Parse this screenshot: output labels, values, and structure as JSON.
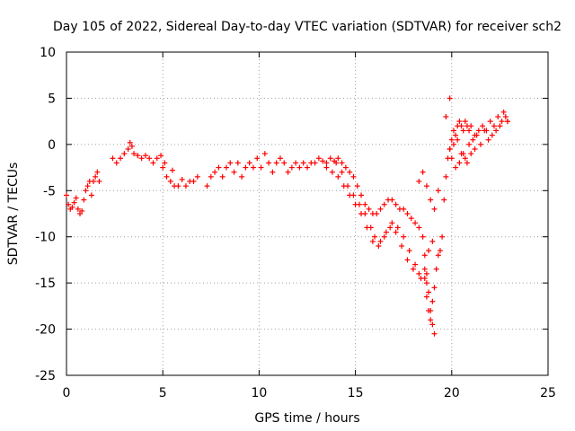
{
  "chart_data": {
    "type": "scatter",
    "title": "Day 105 of 2022, Sidereal Day-to-day VTEC variation (SDTVAR) for receiver sch2",
    "xlabel": "GPS time / hours",
    "ylabel": "SDTVAR / TECUs",
    "xlim": [
      0,
      25
    ],
    "ylim": [
      -25,
      10
    ],
    "xticks": [
      0,
      5,
      10,
      15,
      20,
      25
    ],
    "yticks": [
      -25,
      -20,
      -15,
      -10,
      -5,
      0,
      5,
      10
    ],
    "grid": true,
    "marker": "+",
    "series": [
      {
        "name": "SDTVAR",
        "color": "#ff0000",
        "x": [
          0.0,
          0.1,
          0.2,
          0.3,
          0.4,
          0.5,
          0.6,
          0.7,
          0.8,
          0.9,
          1.0,
          1.1,
          1.2,
          1.3,
          1.4,
          1.5,
          1.6,
          1.7,
          2.4,
          2.6,
          2.8,
          3.0,
          3.2,
          3.3,
          3.4,
          3.5,
          3.7,
          3.9,
          4.1,
          4.3,
          4.5,
          4.7,
          4.9,
          5.0,
          5.1,
          5.2,
          5.4,
          5.5,
          5.6,
          5.8,
          6.0,
          6.2,
          6.4,
          6.6,
          6.8,
          7.3,
          7.5,
          7.7,
          7.9,
          8.1,
          8.3,
          8.5,
          8.7,
          8.9,
          9.1,
          9.3,
          9.5,
          9.7,
          9.9,
          10.1,
          10.3,
          10.5,
          10.7,
          10.9,
          11.1,
          11.3,
          11.5,
          11.7,
          11.9,
          12.1,
          12.3,
          12.5,
          12.7,
          12.9,
          13.1,
          13.3,
          13.5,
          13.7,
          13.9,
          14.1,
          14.3,
          14.5,
          14.7,
          14.9,
          15.1,
          15.3,
          15.5,
          15.7,
          15.9,
          16.1,
          16.3,
          16.5,
          16.7,
          16.9,
          17.1,
          17.3,
          17.5,
          17.7,
          17.9,
          18.1,
          18.3,
          18.5,
          18.6,
          18.7,
          18.8,
          18.9,
          19.0,
          19.1,
          13.5,
          13.8,
          14.1,
          14.4,
          14.7,
          15.0,
          15.3,
          15.6,
          15.9,
          16.2,
          16.5,
          16.8,
          17.1,
          17.4,
          17.7,
          18.0,
          18.3,
          18.6,
          18.8,
          19.0,
          14.0,
          14.3,
          14.6,
          14.9,
          15.2,
          15.5,
          15.8,
          16.0,
          16.3,
          16.6,
          16.9,
          17.2,
          17.5,
          17.8,
          18.1,
          18.4,
          18.7,
          18.6,
          18.7,
          18.8,
          18.9,
          19.0,
          19.1,
          19.2,
          19.3,
          19.4,
          19.5,
          19.6,
          19.7,
          19.8,
          19.9,
          20.0,
          20.1,
          20.2,
          20.3,
          20.4,
          20.5,
          20.6,
          20.7,
          20.8,
          20.9,
          21.0,
          21.2,
          21.4,
          21.6,
          21.8,
          22.0,
          22.2,
          22.4,
          22.6,
          22.8,
          22.9,
          19.7,
          19.9,
          20.1,
          20.3,
          20.5,
          20.7,
          20.9,
          21.1,
          21.3,
          21.5,
          21.7,
          21.9,
          22.1,
          22.3,
          22.5,
          22.7,
          22.9,
          19.9,
          20.0,
          20.2,
          20.4,
          20.6,
          20.8,
          21.0,
          21.2,
          18.3,
          18.5,
          18.7,
          18.9,
          19.1,
          19.3
        ],
        "y": [
          -5.5,
          -6.5,
          -7.0,
          -6.8,
          -6.3,
          -5.8,
          -7.0,
          -7.5,
          -7.2,
          -6.0,
          -5.0,
          -4.5,
          -4.0,
          -5.5,
          -4.0,
          -3.5,
          -3.0,
          -4.0,
          -1.5,
          -2.0,
          -1.5,
          -1.0,
          -0.5,
          0.2,
          -0.2,
          -1.0,
          -1.2,
          -1.5,
          -1.2,
          -1.5,
          -2.0,
          -1.5,
          -1.2,
          -2.5,
          -2.0,
          -3.5,
          -4.0,
          -2.8,
          -4.5,
          -4.5,
          -3.8,
          -4.5,
          -4.0,
          -4.0,
          -3.5,
          -4.5,
          -3.5,
          -3.0,
          -2.5,
          -3.5,
          -2.5,
          -2.0,
          -3.0,
          -2.0,
          -3.5,
          -2.5,
          -2.0,
          -2.5,
          -1.5,
          -2.5,
          -1.0,
          -2.0,
          -3.0,
          -2.0,
          -1.5,
          -2.0,
          -3.0,
          -2.5,
          -2.0,
          -2.5,
          -2.0,
          -2.5,
          -2.0,
          -2.0,
          -1.5,
          -1.8,
          -2.0,
          -1.5,
          -1.8,
          -1.5,
          -2.0,
          -2.5,
          -3.0,
          -3.5,
          -4.5,
          -5.5,
          -6.5,
          -7.0,
          -7.5,
          -7.5,
          -7.0,
          -6.5,
          -6.0,
          -6.0,
          -6.5,
          -7.0,
          -7.0,
          -7.5,
          -8.0,
          -8.5,
          -9.0,
          -10.0,
          -12.0,
          -14.0,
          -16.0,
          -18.0,
          -19.5,
          -20.5,
          -2.5,
          -3.0,
          -3.5,
          -4.5,
          -5.5,
          -6.5,
          -7.5,
          -9.0,
          -10.5,
          -11.0,
          -10.0,
          -9.0,
          -9.5,
          -11.0,
          -12.5,
          -13.5,
          -14.0,
          -13.5,
          -11.5,
          -10.5,
          -2.0,
          -3.0,
          -4.5,
          -5.5,
          -6.5,
          -7.5,
          -9.0,
          -10.0,
          -10.5,
          -9.5,
          -8.5,
          -9.0,
          -10.0,
          -11.5,
          -13.0,
          -14.5,
          -15.0,
          -14.5,
          -16.5,
          -18.0,
          -19.0,
          -17.0,
          -15.5,
          -13.5,
          -12.0,
          -11.5,
          -10.0,
          -6.0,
          -3.5,
          -1.5,
          -0.5,
          0.5,
          0.0,
          1.0,
          2.0,
          2.5,
          2.0,
          1.5,
          2.5,
          2.0,
          1.5,
          2.0,
          1.0,
          1.5,
          2.0,
          1.5,
          2.5,
          2.0,
          3.0,
          2.5,
          3.0,
          2.5,
          3.0,
          5.0,
          1.5,
          0.5,
          -1.0,
          -1.5,
          0.0,
          0.5,
          1.0,
          0.0,
          1.5,
          0.5,
          1.0,
          1.5,
          2.0,
          3.5,
          2.5,
          -0.5,
          -1.5,
          -2.5,
          -2.0,
          -1.0,
          -2.0,
          -1.0,
          -0.5,
          -4.0,
          -3.0,
          -4.5,
          -6.0,
          -7.0,
          -5.0
        ]
      }
    ]
  }
}
